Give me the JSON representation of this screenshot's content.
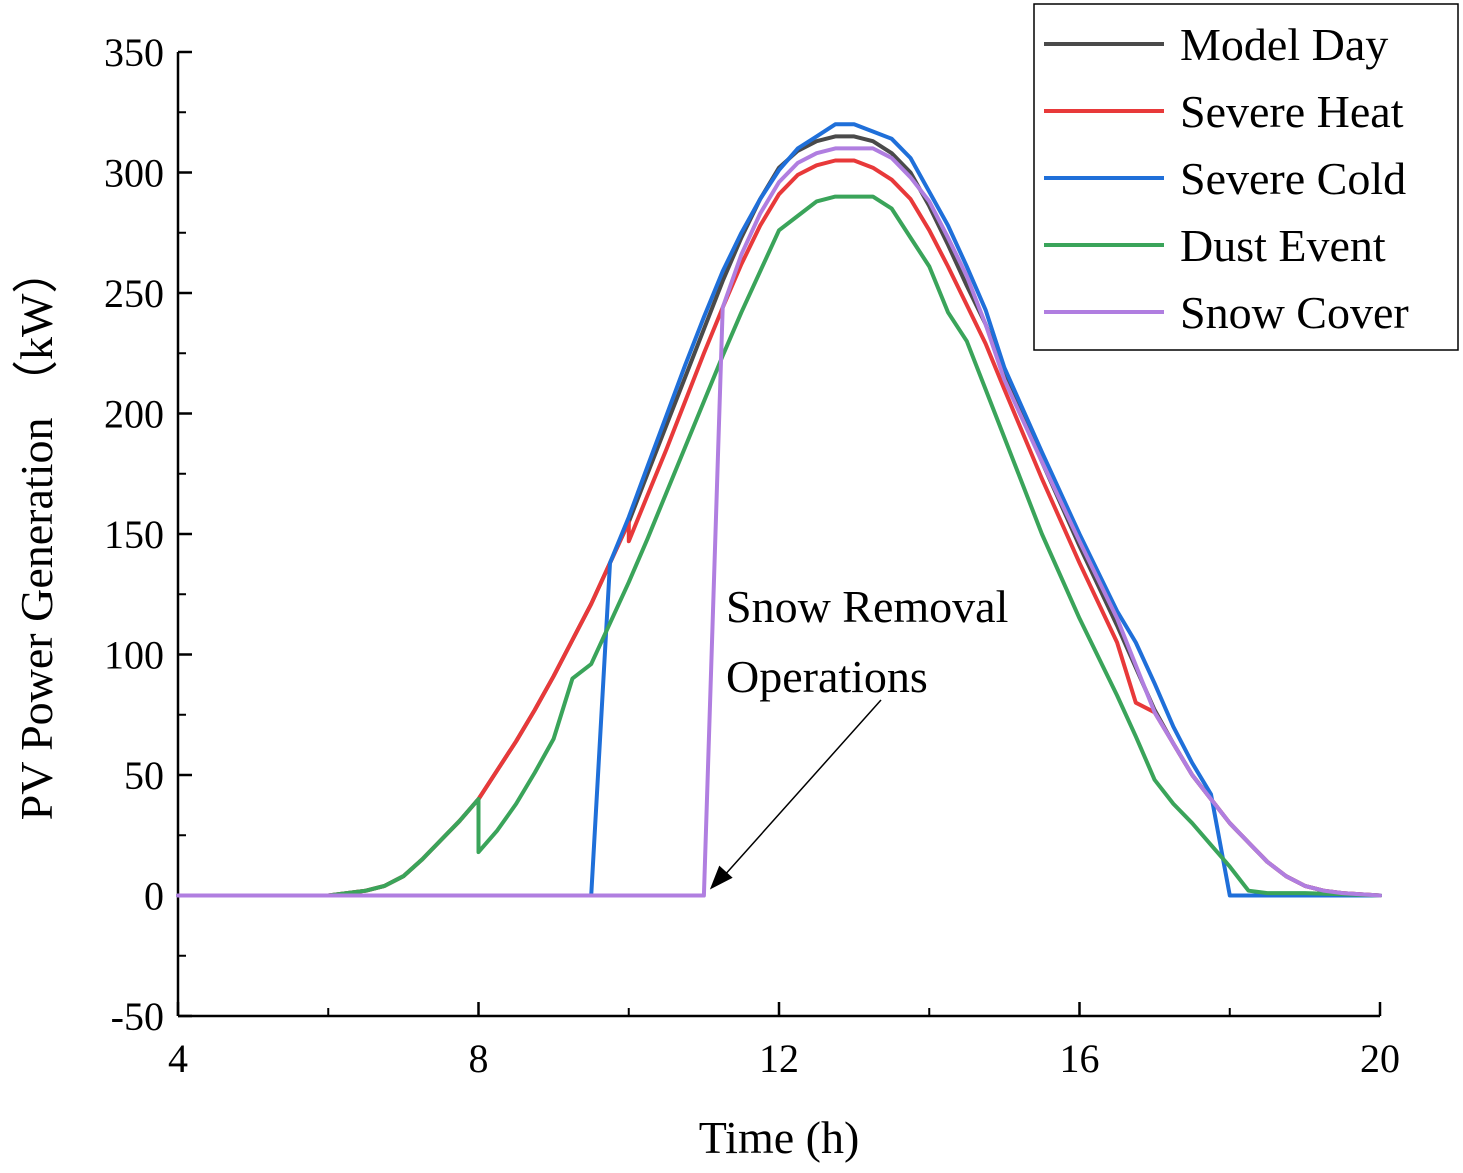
{
  "chart_data": {
    "type": "line",
    "title": "",
    "xlabel": "Time (h)",
    "ylabel": "PV Power Generation （kW）",
    "xlim": [
      4,
      20
    ],
    "ylim": [
      -50,
      350
    ],
    "x_ticks": [
      4,
      8,
      12,
      16,
      20
    ],
    "y_ticks": [
      -50,
      0,
      50,
      100,
      150,
      200,
      250,
      300,
      350
    ],
    "legend_position": "top-right",
    "series": [
      {
        "name": "Model Day",
        "color": "#4a4a4a",
        "points": [
          [
            4,
            0
          ],
          [
            6,
            0
          ],
          [
            6.5,
            2
          ],
          [
            6.75,
            4
          ],
          [
            7,
            8
          ],
          [
            7.25,
            15
          ],
          [
            7.5,
            23
          ],
          [
            7.75,
            31
          ],
          [
            8,
            40
          ],
          [
            8.25,
            52
          ],
          [
            8.5,
            64
          ],
          [
            8.75,
            77
          ],
          [
            9,
            91
          ],
          [
            9.25,
            106
          ],
          [
            9.5,
            121
          ],
          [
            9.75,
            138
          ],
          [
            10,
            155
          ],
          [
            10.25,
            175
          ],
          [
            10.5,
            195
          ],
          [
            10.75,
            215
          ],
          [
            11,
            235
          ],
          [
            11.25,
            255
          ],
          [
            11.5,
            273
          ],
          [
            11.75,
            289
          ],
          [
            12,
            302
          ],
          [
            12.25,
            309
          ],
          [
            12.5,
            313
          ],
          [
            12.75,
            315
          ],
          [
            13,
            315
          ],
          [
            13.25,
            313
          ],
          [
            13.5,
            308
          ],
          [
            13.75,
            300
          ],
          [
            14,
            286
          ],
          [
            14.25,
            270
          ],
          [
            14.5,
            253
          ],
          [
            14.75,
            237
          ],
          [
            15,
            217
          ],
          [
            15.5,
            180
          ],
          [
            16,
            145
          ],
          [
            16.5,
            112
          ],
          [
            17,
            77
          ],
          [
            17.25,
            63
          ],
          [
            17.5,
            50
          ],
          [
            17.75,
            40
          ],
          [
            18,
            30
          ],
          [
            18.25,
            22
          ],
          [
            18.5,
            14
          ],
          [
            18.75,
            8
          ],
          [
            19,
            4
          ],
          [
            19.25,
            2
          ],
          [
            19.5,
            1
          ],
          [
            20,
            0
          ]
        ]
      },
      {
        "name": "Severe Heat",
        "color": "#e8393a",
        "points": [
          [
            4,
            0
          ],
          [
            6,
            0
          ],
          [
            6.5,
            2
          ],
          [
            6.75,
            4
          ],
          [
            7,
            8
          ],
          [
            7.25,
            15
          ],
          [
            7.5,
            23
          ],
          [
            7.75,
            31
          ],
          [
            8,
            40
          ],
          [
            8.25,
            52
          ],
          [
            8.5,
            64
          ],
          [
            8.75,
            77
          ],
          [
            9,
            91
          ],
          [
            9.25,
            106
          ],
          [
            9.5,
            121
          ],
          [
            9.75,
            138
          ],
          [
            10,
            155
          ],
          [
            10,
            147
          ],
          [
            10.25,
            166
          ],
          [
            10.5,
            185
          ],
          [
            10.75,
            205
          ],
          [
            11,
            225
          ],
          [
            11.25,
            244
          ],
          [
            11.5,
            262
          ],
          [
            11.75,
            278
          ],
          [
            12,
            291
          ],
          [
            12.25,
            299
          ],
          [
            12.5,
            303
          ],
          [
            12.75,
            305
          ],
          [
            13,
            305
          ],
          [
            13.25,
            302
          ],
          [
            13.5,
            297
          ],
          [
            13.75,
            289
          ],
          [
            14,
            276
          ],
          [
            14.25,
            261
          ],
          [
            14.5,
            245
          ],
          [
            14.75,
            229
          ],
          [
            15,
            210
          ],
          [
            15.5,
            173
          ],
          [
            16,
            138
          ],
          [
            16.5,
            105
          ],
          [
            16.75,
            80
          ],
          [
            17,
            76
          ],
          [
            17.25,
            63
          ],
          [
            17.5,
            50
          ],
          [
            17.75,
            40
          ],
          [
            18,
            30
          ],
          [
            18.25,
            22
          ],
          [
            18.5,
            14
          ],
          [
            18.75,
            8
          ],
          [
            19,
            4
          ],
          [
            19.25,
            2
          ],
          [
            19.5,
            1
          ],
          [
            20,
            0
          ]
        ]
      },
      {
        "name": "Severe Cold",
        "color": "#1f6fd9",
        "points": [
          [
            4,
            0
          ],
          [
            9.5,
            0
          ],
          [
            9.75,
            138
          ],
          [
            10,
            157
          ],
          [
            10.25,
            178
          ],
          [
            10.5,
            199
          ],
          [
            10.75,
            220
          ],
          [
            11,
            240
          ],
          [
            11.25,
            259
          ],
          [
            11.5,
            275
          ],
          [
            11.75,
            289
          ],
          [
            12,
            301
          ],
          [
            12.25,
            310
          ],
          [
            12.5,
            315
          ],
          [
            12.75,
            320
          ],
          [
            13,
            320
          ],
          [
            13.25,
            317
          ],
          [
            13.5,
            314
          ],
          [
            13.75,
            306
          ],
          [
            14,
            292
          ],
          [
            14.25,
            278
          ],
          [
            14.5,
            261
          ],
          [
            14.75,
            243
          ],
          [
            15,
            219
          ],
          [
            15.5,
            184
          ],
          [
            16,
            150
          ],
          [
            16.5,
            118
          ],
          [
            16.75,
            105
          ],
          [
            17,
            88
          ],
          [
            17.25,
            70
          ],
          [
            17.5,
            55
          ],
          [
            17.75,
            42
          ],
          [
            18,
            0
          ],
          [
            20,
            0
          ]
        ]
      },
      {
        "name": "Dust Event",
        "color": "#3aa45a",
        "points": [
          [
            4,
            0
          ],
          [
            6,
            0
          ],
          [
            6.5,
            2
          ],
          [
            6.75,
            4
          ],
          [
            7,
            8
          ],
          [
            7.25,
            15
          ],
          [
            7.5,
            23
          ],
          [
            7.75,
            31
          ],
          [
            8,
            40
          ],
          [
            8,
            18
          ],
          [
            8.25,
            27
          ],
          [
            8.5,
            38
          ],
          [
            8.75,
            51
          ],
          [
            9,
            65
          ],
          [
            9.25,
            90
          ],
          [
            9.5,
            96
          ],
          [
            9.75,
            113
          ],
          [
            10,
            130
          ],
          [
            10.25,
            148
          ],
          [
            10.5,
            167
          ],
          [
            10.75,
            186
          ],
          [
            11,
            205
          ],
          [
            11.25,
            224
          ],
          [
            11.5,
            242
          ],
          [
            11.75,
            259
          ],
          [
            12,
            276
          ],
          [
            12.25,
            282
          ],
          [
            12.5,
            288
          ],
          [
            12.75,
            290
          ],
          [
            13,
            290
          ],
          [
            13.25,
            290
          ],
          [
            13.5,
            285
          ],
          [
            13.75,
            273
          ],
          [
            14,
            261
          ],
          [
            14.25,
            242
          ],
          [
            14.5,
            230
          ],
          [
            14.75,
            210
          ],
          [
            15,
            190
          ],
          [
            15.5,
            150
          ],
          [
            16,
            115
          ],
          [
            16.5,
            83
          ],
          [
            16.75,
            66
          ],
          [
            17,
            48
          ],
          [
            17.25,
            38
          ],
          [
            17.5,
            30
          ],
          [
            17.75,
            21
          ],
          [
            18,
            12
          ],
          [
            18.25,
            2
          ],
          [
            18.5,
            1
          ],
          [
            19,
            1
          ],
          [
            19.5,
            0.5
          ],
          [
            20,
            0
          ]
        ]
      },
      {
        "name": "Snow Cover",
        "color": "#b07ee0",
        "points": [
          [
            4,
            0
          ],
          [
            11,
            0
          ],
          [
            11.25,
            244
          ],
          [
            11.5,
            266
          ],
          [
            11.75,
            283
          ],
          [
            12,
            296
          ],
          [
            12.25,
            304
          ],
          [
            12.5,
            308
          ],
          [
            12.75,
            310
          ],
          [
            13,
            310
          ],
          [
            13.25,
            310
          ],
          [
            13.5,
            306
          ],
          [
            13.75,
            298
          ],
          [
            14,
            288
          ],
          [
            14.25,
            273
          ],
          [
            14.5,
            257
          ],
          [
            14.75,
            237
          ],
          [
            15,
            214
          ],
          [
            15.5,
            180
          ],
          [
            16,
            147
          ],
          [
            16.5,
            115
          ],
          [
            17,
            76
          ],
          [
            17.25,
            63
          ],
          [
            17.5,
            50
          ],
          [
            17.75,
            40
          ],
          [
            18,
            30
          ],
          [
            18.25,
            22
          ],
          [
            18.5,
            14
          ],
          [
            18.75,
            8
          ],
          [
            19,
            4
          ],
          [
            19.25,
            2
          ],
          [
            19.5,
            1
          ],
          [
            20,
            0
          ]
        ]
      }
    ],
    "annotations": [
      {
        "lines": [
          "Snow Removal",
          "Operations"
        ],
        "points_to": [
          11,
          0
        ]
      }
    ]
  }
}
